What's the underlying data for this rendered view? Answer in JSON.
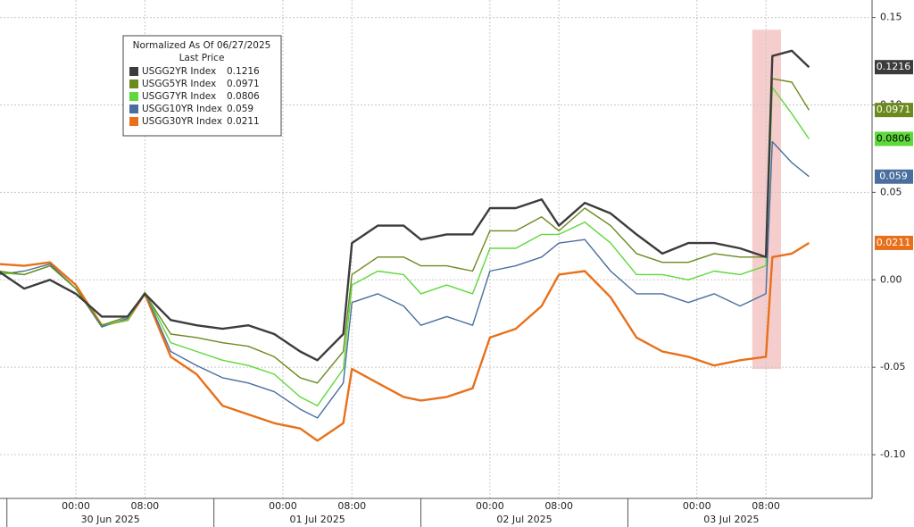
{
  "chart_data": {
    "type": "line",
    "legend_title": "Normalized As Of 06/27/2025",
    "legend_subtitle": "Last Price",
    "x": [
      "2025-06-29T15:00",
      "2025-06-29T18:00",
      "2025-06-29T21:00",
      "2025-06-30T00:00",
      "2025-06-30T03:00",
      "2025-06-30T06:00",
      "2025-06-30T08:00",
      "2025-06-30T11:00",
      "2025-06-30T14:00",
      "2025-06-30T17:00",
      "2025-06-30T20:00",
      "2025-06-30T23:00",
      "2025-07-01T02:00",
      "2025-07-01T04:00",
      "2025-07-01T07:00",
      "2025-07-01T08:00",
      "2025-07-01T11:00",
      "2025-07-01T14:00",
      "2025-07-01T16:00",
      "2025-07-01T19:00",
      "2025-07-01T22:00",
      "2025-07-02T00:00",
      "2025-07-02T03:00",
      "2025-07-02T06:00",
      "2025-07-02T08:00",
      "2025-07-02T11:00",
      "2025-07-02T14:00",
      "2025-07-02T17:00",
      "2025-07-02T20:00",
      "2025-07-02T23:00",
      "2025-07-03T02:00",
      "2025-07-03T05:00",
      "2025-07-03T08:00",
      "2025-07-03T08:45",
      "2025-07-03T11:00",
      "2025-07-03T13:00"
    ],
    "series": [
      {
        "name": "USGG2YR Index",
        "color": "#3c3c3c",
        "values": [
          0.005,
          -0.005,
          0,
          -0.008,
          -0.021,
          -0.021,
          -0.008,
          -0.023,
          -0.026,
          -0.028,
          -0.026,
          -0.031,
          -0.041,
          -0.046,
          -0.031,
          0.021,
          0.031,
          0.031,
          0.023,
          0.026,
          0.026,
          0.041,
          0.041,
          0.046,
          0.031,
          0.044,
          0.038,
          0.026,
          0.015,
          0.021,
          0.021,
          0.018,
          0.013,
          0.128,
          0.131,
          0.1216
        ]
      },
      {
        "name": "USGG5YR Index",
        "color": "#6b8a1e",
        "values": [
          0.005,
          0.003,
          0.008,
          -0.005,
          -0.026,
          -0.021,
          -0.008,
          -0.031,
          -0.033,
          -0.036,
          -0.038,
          -0.044,
          -0.056,
          -0.059,
          -0.041,
          0.003,
          0.013,
          0.013,
          0.008,
          0.008,
          0.005,
          0.028,
          0.028,
          0.036,
          0.028,
          0.041,
          0.031,
          0.015,
          0.01,
          0.01,
          0.015,
          0.013,
          0.013,
          0.115,
          0.113,
          0.0971
        ]
      },
      {
        "name": "USGG7YR Index",
        "color": "#5ed83c",
        "values": [
          0.004,
          0.003,
          0.008,
          -0.005,
          -0.026,
          -0.023,
          -0.007,
          -0.036,
          -0.041,
          -0.046,
          -0.049,
          -0.054,
          -0.067,
          -0.072,
          -0.051,
          -0.003,
          0.005,
          0.003,
          -0.008,
          -0.003,
          -0.008,
          0.018,
          0.018,
          0.026,
          0.026,
          0.033,
          0.021,
          0.003,
          0.003,
          0,
          0.005,
          0.003,
          0.008,
          0.11,
          0.095,
          0.0806
        ]
      },
      {
        "name": "USGG10YR Index",
        "color": "#4a6e9e",
        "values": [
          0.003,
          0.005,
          0.009,
          -0.005,
          -0.027,
          -0.022,
          -0.007,
          -0.041,
          -0.049,
          -0.056,
          -0.059,
          -0.064,
          -0.074,
          -0.079,
          -0.059,
          -0.013,
          -0.008,
          -0.015,
          -0.026,
          -0.021,
          -0.026,
          0.005,
          0.008,
          0.013,
          0.021,
          0.023,
          0.005,
          -0.008,
          -0.008,
          -0.013,
          -0.008,
          -0.015,
          -0.008,
          0.079,
          0.067,
          0.059
        ]
      },
      {
        "name": "USGG30YR Index",
        "color": "#e8701a",
        "values": [
          0.009,
          0.008,
          0.01,
          -0.003,
          -0.026,
          -0.023,
          -0.008,
          -0.044,
          -0.054,
          -0.072,
          -0.077,
          -0.082,
          -0.085,
          -0.092,
          -0.082,
          -0.051,
          -0.059,
          -0.067,
          -0.069,
          -0.067,
          -0.062,
          -0.033,
          -0.028,
          -0.015,
          0.003,
          0.005,
          -0.01,
          -0.033,
          -0.041,
          -0.044,
          -0.049,
          -0.046,
          -0.044,
          0.013,
          0.015,
          0.0211
        ]
      }
    ],
    "xlim": [
      "2025-06-29T15:12",
      "2025-07-03T20:06"
    ],
    "xticks": [
      {
        "value": "2025-06-30T00:00",
        "label": "00:00"
      },
      {
        "value": "2025-06-30T08:00",
        "label": "08:00"
      },
      {
        "value": "2025-07-01T00:00",
        "label": "00:00"
      },
      {
        "value": "2025-07-01T08:00",
        "label": "08:00"
      },
      {
        "value": "2025-07-02T00:00",
        "label": "00:00"
      },
      {
        "value": "2025-07-02T08:00",
        "label": "08:00"
      },
      {
        "value": "2025-07-03T00:00",
        "label": "00:00"
      },
      {
        "value": "2025-07-03T08:00",
        "label": "08:00"
      }
    ],
    "date_labels": [
      {
        "value": "2025-06-30T04:00",
        "label": "30 Jun 2025"
      },
      {
        "value": "2025-07-01T04:00",
        "label": "01 Jul 2025"
      },
      {
        "value": "2025-07-02T04:00",
        "label": "02 Jul 2025"
      },
      {
        "value": "2025-07-03T04:00",
        "label": "03 Jul 2025"
      }
    ],
    "ylim": [
      -0.125,
      0.16
    ],
    "yticks": [
      0.15,
      {
        "value": 0.1,
        "label": "0.10"
      },
      0.05,
      {
        "value": 0,
        "label": "0.00"
      },
      -0.05,
      {
        "value": -0.1,
        "label": "-0.10"
      }
    ],
    "grid": true,
    "highlight": {
      "x0": "2025-07-03T06:25",
      "x1": "2025-07-03T09:45",
      "y0": 0.143,
      "y1": -0.051,
      "color": "#f4c4c4"
    }
  }
}
